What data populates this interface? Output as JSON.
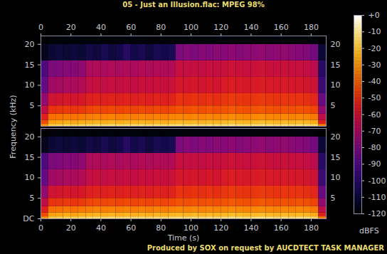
{
  "chart_data": {
    "type": "heatmap",
    "title": "05 - Just an Illusion.flac: MPEG 98%",
    "x_label": "Time (s)",
    "y_label": "Frequency (kHz)",
    "caption": "Produced by SOX on request by AUCDTECT TASK MANAGER",
    "xlim": [
      0,
      190
    ],
    "xticks": [
      0,
      20,
      40,
      60,
      80,
      100,
      120,
      140,
      160,
      180
    ],
    "ylim": [
      0,
      22.05
    ],
    "x_bins": [
      0,
      5,
      10,
      15,
      20,
      25,
      30,
      35,
      40,
      45,
      50,
      55,
      60,
      65,
      70,
      75,
      80,
      85,
      90,
      95,
      100,
      105,
      110,
      115,
      120,
      125,
      130,
      135,
      140,
      145,
      150,
      155,
      160,
      165,
      170,
      175,
      180,
      185,
      190
    ],
    "y_bins": [
      0,
      0.5,
      1.5,
      3,
      5,
      8,
      12,
      16,
      20,
      22.05
    ],
    "panels": [
      {
        "yticks": [
          5,
          10,
          15,
          20
        ],
        "y2ticks": [
          5,
          10,
          15,
          20
        ],
        "cells": [
          [
            -30,
            -18,
            -17,
            -16,
            -17,
            -16,
            -15,
            -14,
            -15,
            -14,
            -15,
            -14,
            -15,
            -14,
            -15,
            -14,
            -15,
            -14,
            -13,
            -14,
            -13,
            -14,
            -13,
            -14,
            -13,
            -12,
            -13,
            -14,
            -13,
            -12,
            -13,
            -14,
            -13,
            -14,
            -13,
            -14,
            -15,
            -35
          ],
          [
            -45,
            -28,
            -27,
            -26,
            -27,
            -26,
            -25,
            -24,
            -25,
            -24,
            -25,
            -24,
            -25,
            -24,
            -25,
            -24,
            -25,
            -24,
            -23,
            -24,
            -23,
            -24,
            -23,
            -24,
            -23,
            -22,
            -23,
            -24,
            -23,
            -22,
            -23,
            -24,
            -23,
            -24,
            -23,
            -24,
            -26,
            -55
          ],
          [
            -55,
            -38,
            -37,
            -36,
            -37,
            -36,
            -35,
            -34,
            -35,
            -34,
            -35,
            -34,
            -35,
            -34,
            -35,
            -34,
            -35,
            -34,
            -33,
            -34,
            -33,
            -34,
            -33,
            -34,
            -33,
            -32,
            -33,
            -34,
            -33,
            -32,
            -33,
            -34,
            -33,
            -34,
            -33,
            -34,
            -36,
            -65
          ],
          [
            -65,
            -50,
            -49,
            -48,
            -49,
            -48,
            -46,
            -45,
            -46,
            -45,
            -46,
            -45,
            -46,
            -45,
            -46,
            -45,
            -46,
            -45,
            -43,
            -44,
            -43,
            -44,
            -43,
            -44,
            -43,
            -42,
            -43,
            -44,
            -43,
            -42,
            -43,
            -44,
            -43,
            -44,
            -43,
            -44,
            -46,
            -75
          ],
          [
            -75,
            -60,
            -59,
            -58,
            -59,
            -58,
            -55,
            -54,
            -55,
            -54,
            -55,
            -54,
            -55,
            -54,
            -55,
            -54,
            -55,
            -54,
            -50,
            -51,
            -50,
            -51,
            -50,
            -51,
            -49,
            -48,
            -49,
            -50,
            -49,
            -48,
            -49,
            -50,
            -49,
            -50,
            -50,
            -51,
            -53,
            -85
          ],
          [
            -85,
            -72,
            -71,
            -70,
            -70,
            -68,
            -64,
            -63,
            -64,
            -63,
            -64,
            -63,
            -64,
            -62,
            -63,
            -62,
            -63,
            -62,
            -58,
            -59,
            -58,
            -59,
            -58,
            -59,
            -57,
            -56,
            -57,
            -58,
            -57,
            -56,
            -57,
            -58,
            -57,
            -58,
            -58,
            -59,
            -61,
            -95
          ],
          [
            -90,
            -80,
            -79,
            -78,
            -78,
            -76,
            -70,
            -69,
            -70,
            -69,
            -70,
            -69,
            -70,
            -68,
            -69,
            -68,
            -69,
            -68,
            -63,
            -64,
            -63,
            -64,
            -63,
            -64,
            -62,
            -61,
            -62,
            -63,
            -62,
            -61,
            -62,
            -63,
            -62,
            -63,
            -63,
            -64,
            -66,
            -100
          ],
          [
            -115,
            -110,
            -108,
            -110,
            -108,
            -110,
            -106,
            -108,
            -104,
            -108,
            -106,
            -100,
            -106,
            -104,
            -108,
            -104,
            -106,
            -104,
            -80,
            -78,
            -80,
            -78,
            -79,
            -77,
            -78,
            -76,
            -78,
            -77,
            -76,
            -75,
            -77,
            -76,
            -75,
            -77,
            -78,
            -79,
            -82,
            -110
          ],
          [
            -120,
            -118,
            -118,
            -118,
            -118,
            -118,
            -118,
            -118,
            -118,
            -118,
            -118,
            -118,
            -118,
            -118,
            -118,
            -118,
            -118,
            -118,
            -118,
            -118,
            -118,
            -118,
            -118,
            -118,
            -118,
            -118,
            -118,
            -118,
            -118,
            -118,
            -118,
            -118,
            -118,
            -118,
            -118,
            -118,
            -118,
            -120
          ]
        ]
      },
      {
        "yticks": [
          {
            "value": 0,
            "label": "DC"
          },
          5,
          10,
          15,
          20
        ],
        "y2ticks": [
          5,
          10,
          15,
          20
        ],
        "cells": [
          [
            -30,
            -18,
            -17,
            -16,
            -17,
            -16,
            -15,
            -14,
            -15,
            -14,
            -15,
            -14,
            -15,
            -14,
            -15,
            -14,
            -15,
            -14,
            -13,
            -14,
            -13,
            -14,
            -13,
            -14,
            -13,
            -12,
            -13,
            -14,
            -13,
            -12,
            -13,
            -14,
            -13,
            -14,
            -13,
            -14,
            -15,
            -35
          ],
          [
            -45,
            -28,
            -27,
            -26,
            -27,
            -26,
            -25,
            -24,
            -25,
            -24,
            -25,
            -24,
            -25,
            -24,
            -25,
            -24,
            -25,
            -24,
            -23,
            -24,
            -23,
            -24,
            -23,
            -24,
            -23,
            -22,
            -23,
            -24,
            -23,
            -22,
            -23,
            -24,
            -23,
            -24,
            -23,
            -24,
            -26,
            -55
          ],
          [
            -55,
            -38,
            -37,
            -36,
            -37,
            -36,
            -35,
            -34,
            -35,
            -34,
            -35,
            -34,
            -35,
            -34,
            -35,
            -34,
            -35,
            -34,
            -33,
            -34,
            -33,
            -34,
            -33,
            -34,
            -33,
            -32,
            -33,
            -34,
            -33,
            -32,
            -33,
            -34,
            -33,
            -34,
            -33,
            -34,
            -36,
            -65
          ],
          [
            -65,
            -50,
            -49,
            -48,
            -49,
            -48,
            -46,
            -45,
            -46,
            -45,
            -46,
            -45,
            -46,
            -45,
            -46,
            -45,
            -46,
            -45,
            -43,
            -44,
            -43,
            -44,
            -43,
            -44,
            -43,
            -42,
            -43,
            -44,
            -43,
            -42,
            -43,
            -44,
            -43,
            -44,
            -43,
            -44,
            -46,
            -75
          ],
          [
            -75,
            -60,
            -59,
            -58,
            -59,
            -58,
            -55,
            -54,
            -55,
            -54,
            -55,
            -54,
            -55,
            -54,
            -55,
            -54,
            -55,
            -54,
            -50,
            -51,
            -50,
            -51,
            -50,
            -51,
            -49,
            -48,
            -49,
            -50,
            -49,
            -48,
            -49,
            -50,
            -49,
            -50,
            -50,
            -51,
            -53,
            -85
          ],
          [
            -85,
            -72,
            -71,
            -70,
            -70,
            -68,
            -64,
            -63,
            -64,
            -63,
            -64,
            -63,
            -64,
            -62,
            -63,
            -62,
            -63,
            -62,
            -58,
            -59,
            -58,
            -59,
            -58,
            -59,
            -57,
            -56,
            -57,
            -58,
            -57,
            -56,
            -57,
            -58,
            -57,
            -58,
            -58,
            -59,
            -61,
            -95
          ],
          [
            -90,
            -80,
            -79,
            -78,
            -78,
            -76,
            -70,
            -69,
            -70,
            -69,
            -70,
            -69,
            -70,
            -68,
            -69,
            -68,
            -69,
            -68,
            -63,
            -64,
            -63,
            -64,
            -63,
            -64,
            -62,
            -61,
            -62,
            -63,
            -62,
            -61,
            -62,
            -63,
            -62,
            -63,
            -63,
            -64,
            -66,
            -100
          ],
          [
            -115,
            -110,
            -108,
            -110,
            -108,
            -110,
            -106,
            -108,
            -104,
            -108,
            -106,
            -100,
            -106,
            -104,
            -108,
            -104,
            -106,
            -104,
            -80,
            -78,
            -80,
            -78,
            -79,
            -77,
            -78,
            -76,
            -78,
            -77,
            -76,
            -75,
            -77,
            -76,
            -75,
            -77,
            -78,
            -79,
            -82,
            -110
          ],
          [
            -120,
            -118,
            -118,
            -118,
            -118,
            -118,
            -118,
            -118,
            -118,
            -118,
            -118,
            -118,
            -118,
            -118,
            -118,
            -118,
            -118,
            -118,
            -118,
            -118,
            -118,
            -118,
            -118,
            -118,
            -118,
            -118,
            -118,
            -118,
            -118,
            -118,
            -118,
            -118,
            -118,
            -118,
            -118,
            -118,
            -118,
            -120
          ]
        ]
      }
    ],
    "colorbar": {
      "label": "dBFS",
      "range": [
        -120,
        0
      ],
      "ticks": [
        {
          "value": 0,
          "label": "+0"
        },
        -10,
        -20,
        -30,
        -40,
        -50,
        -60,
        -70,
        -80,
        -90,
        -100,
        -110,
        -120
      ]
    }
  }
}
